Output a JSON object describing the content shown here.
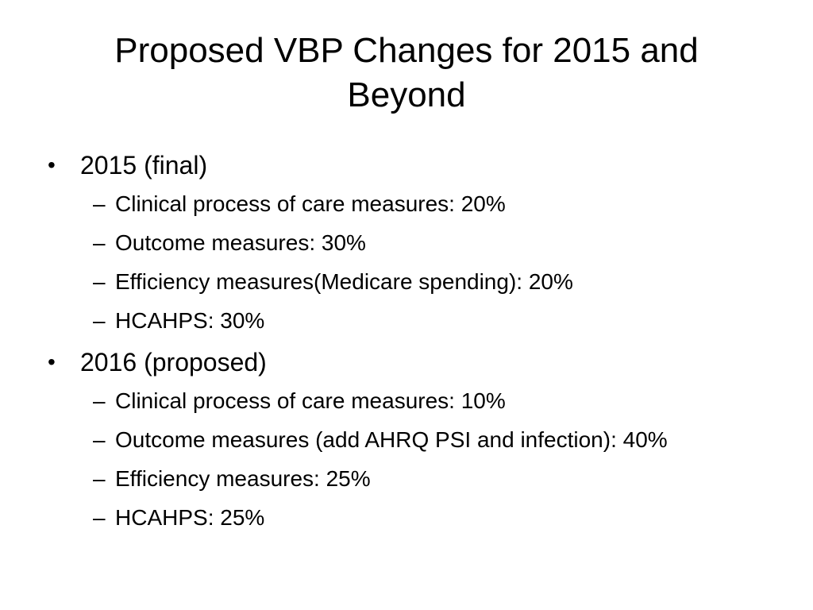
{
  "slide": {
    "title_line1": "Proposed VBP Changes for 2015 and",
    "title_line2": "Beyond",
    "sections": [
      {
        "heading": "2015 (final)",
        "items": [
          "Clinical process of care measures: 20%",
          "Outcome measures: 30%",
          "Efficiency measures(Medicare spending): 20%",
          "HCAHPS: 30%"
        ]
      },
      {
        "heading": "2016 (proposed)",
        "items": [
          "Clinical process of care measures: 10%",
          "Outcome measures (add AHRQ PSI and infection): 40%",
          "Efficiency measures: 25%",
          "HCAHPS: 25%"
        ]
      }
    ],
    "bullet_glyph": "•",
    "dash_glyph": "–",
    "colors": {
      "background": "#ffffff",
      "text": "#000000"
    }
  }
}
